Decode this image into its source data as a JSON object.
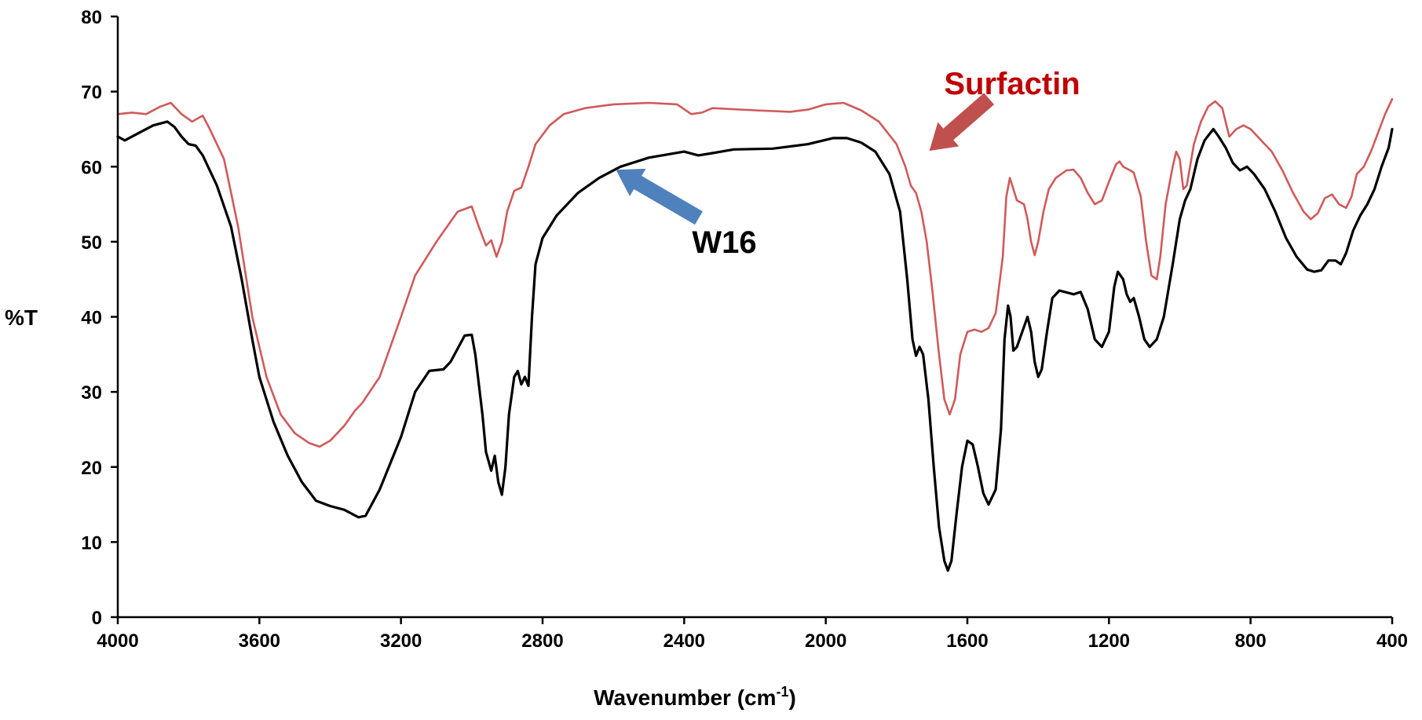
{
  "chart_data": {
    "type": "line",
    "title": "",
    "xlabel": "Wavenumber (cm",
    "xlabel_sup": "-1",
    "xlabel_close": ")",
    "ylabel": "%T",
    "xlim": [
      4000,
      400
    ],
    "ylim": [
      0,
      80
    ],
    "x_reversed": true,
    "x_ticks": [
      4000,
      3600,
      3200,
      2800,
      2400,
      2000,
      1600,
      1200,
      800,
      400
    ],
    "x_tick_labels": [
      "4000",
      "3600",
      "3200",
      "2800",
      "2400",
      "2000",
      "1600",
      "1200",
      "800",
      "400"
    ],
    "y_ticks": [
      0,
      10,
      20,
      30,
      40,
      50,
      60,
      70,
      80
    ],
    "y_tick_labels": [
      "0",
      "10",
      "20",
      "30",
      "40",
      "50",
      "60",
      "70",
      "80"
    ],
    "grid": false,
    "series": [
      {
        "name": "Surfactin",
        "color": "#d05a5a",
        "points": [
          [
            4000,
            67
          ],
          [
            3960,
            67.2
          ],
          [
            3920,
            67
          ],
          [
            3880,
            68
          ],
          [
            3850,
            68.5
          ],
          [
            3820,
            67
          ],
          [
            3790,
            66
          ],
          [
            3760,
            66.8
          ],
          [
            3740,
            65
          ],
          [
            3700,
            61
          ],
          [
            3660,
            52
          ],
          [
            3620,
            40
          ],
          [
            3580,
            32
          ],
          [
            3540,
            27
          ],
          [
            3500,
            24.5
          ],
          [
            3460,
            23.2
          ],
          [
            3430,
            22.7
          ],
          [
            3400,
            23.5
          ],
          [
            3360,
            25.5
          ],
          [
            3330,
            27.5
          ],
          [
            3310,
            28.5
          ],
          [
            3260,
            32
          ],
          [
            3200,
            40
          ],
          [
            3160,
            45.5
          ],
          [
            3100,
            50
          ],
          [
            3040,
            54
          ],
          [
            3000,
            54.7
          ],
          [
            2980,
            52
          ],
          [
            2960,
            49.5
          ],
          [
            2945,
            50.2
          ],
          [
            2930,
            48
          ],
          [
            2915,
            50
          ],
          [
            2900,
            54
          ],
          [
            2880,
            56.8
          ],
          [
            2860,
            57.2
          ],
          [
            2840,
            60
          ],
          [
            2820,
            63
          ],
          [
            2780,
            65.5
          ],
          [
            2740,
            67
          ],
          [
            2680,
            67.8
          ],
          [
            2600,
            68.3
          ],
          [
            2500,
            68.5
          ],
          [
            2420,
            68.3
          ],
          [
            2380,
            67
          ],
          [
            2350,
            67.2
          ],
          [
            2320,
            67.8
          ],
          [
            2200,
            67.5
          ],
          [
            2100,
            67.3
          ],
          [
            2050,
            67.6
          ],
          [
            2000,
            68.3
          ],
          [
            1950,
            68.5
          ],
          [
            1900,
            67.5
          ],
          [
            1850,
            66
          ],
          [
            1800,
            63
          ],
          [
            1775,
            60
          ],
          [
            1760,
            57.5
          ],
          [
            1745,
            56.5
          ],
          [
            1730,
            54
          ],
          [
            1715,
            50
          ],
          [
            1700,
            44
          ],
          [
            1680,
            35
          ],
          [
            1665,
            29
          ],
          [
            1650,
            27
          ],
          [
            1635,
            29
          ],
          [
            1620,
            35
          ],
          [
            1600,
            38
          ],
          [
            1580,
            38.3
          ],
          [
            1560,
            38
          ],
          [
            1540,
            38.5
          ],
          [
            1520,
            40.5
          ],
          [
            1500,
            48
          ],
          [
            1490,
            56
          ],
          [
            1480,
            58.5
          ],
          [
            1470,
            57
          ],
          [
            1460,
            55.5
          ],
          [
            1440,
            55
          ],
          [
            1430,
            53
          ],
          [
            1420,
            50
          ],
          [
            1410,
            48.2
          ],
          [
            1400,
            50
          ],
          [
            1385,
            54
          ],
          [
            1370,
            57
          ],
          [
            1350,
            58.5
          ],
          [
            1320,
            59.5
          ],
          [
            1300,
            59.6
          ],
          [
            1280,
            58.5
          ],
          [
            1260,
            56.5
          ],
          [
            1240,
            55
          ],
          [
            1220,
            55.5
          ],
          [
            1200,
            58
          ],
          [
            1180,
            60.3
          ],
          [
            1170,
            60.7
          ],
          [
            1160,
            60
          ],
          [
            1140,
            59.5
          ],
          [
            1130,
            59.2
          ],
          [
            1110,
            56
          ],
          [
            1095,
            50
          ],
          [
            1080,
            45.5
          ],
          [
            1065,
            45
          ],
          [
            1055,
            48
          ],
          [
            1040,
            55
          ],
          [
            1020,
            60
          ],
          [
            1010,
            62
          ],
          [
            1000,
            61
          ],
          [
            990,
            57
          ],
          [
            980,
            57.5
          ],
          [
            960,
            63
          ],
          [
            940,
            66
          ],
          [
            920,
            68
          ],
          [
            900,
            68.7
          ],
          [
            880,
            67.8
          ],
          [
            860,
            64
          ],
          [
            840,
            65
          ],
          [
            820,
            65.5
          ],
          [
            800,
            65
          ],
          [
            780,
            64
          ],
          [
            760,
            63
          ],
          [
            740,
            62
          ],
          [
            710,
            59.5
          ],
          [
            680,
            56.5
          ],
          [
            650,
            54
          ],
          [
            630,
            53
          ],
          [
            610,
            53.8
          ],
          [
            590,
            55.8
          ],
          [
            570,
            56.3
          ],
          [
            550,
            55
          ],
          [
            530,
            54.5
          ],
          [
            515,
            56
          ],
          [
            500,
            59
          ],
          [
            480,
            60
          ],
          [
            460,
            62
          ],
          [
            440,
            64.5
          ],
          [
            420,
            67
          ],
          [
            400,
            69
          ]
        ]
      },
      {
        "name": "W16",
        "color": "#000000",
        "points": [
          [
            4000,
            64
          ],
          [
            3980,
            63.5
          ],
          [
            3940,
            64.5
          ],
          [
            3900,
            65.5
          ],
          [
            3860,
            66
          ],
          [
            3840,
            65.3
          ],
          [
            3820,
            64
          ],
          [
            3800,
            63
          ],
          [
            3780,
            62.8
          ],
          [
            3760,
            61.5
          ],
          [
            3720,
            57.5
          ],
          [
            3680,
            52
          ],
          [
            3650,
            45
          ],
          [
            3620,
            37
          ],
          [
            3600,
            32
          ],
          [
            3560,
            26
          ],
          [
            3520,
            21.5
          ],
          [
            3480,
            18
          ],
          [
            3440,
            15.5
          ],
          [
            3400,
            14.8
          ],
          [
            3360,
            14.3
          ],
          [
            3320,
            13.3
          ],
          [
            3300,
            13.5
          ],
          [
            3260,
            17
          ],
          [
            3200,
            24
          ],
          [
            3160,
            30
          ],
          [
            3120,
            32.8
          ],
          [
            3080,
            33
          ],
          [
            3060,
            34
          ],
          [
            3020,
            37.5
          ],
          [
            3000,
            37.6
          ],
          [
            2990,
            35
          ],
          [
            2970,
            27
          ],
          [
            2960,
            22
          ],
          [
            2945,
            19.5
          ],
          [
            2935,
            21.5
          ],
          [
            2925,
            18
          ],
          [
            2915,
            16.3
          ],
          [
            2905,
            20
          ],
          [
            2895,
            27
          ],
          [
            2880,
            32
          ],
          [
            2870,
            32.8
          ],
          [
            2860,
            31
          ],
          [
            2850,
            32
          ],
          [
            2840,
            30.8
          ],
          [
            2830,
            40
          ],
          [
            2820,
            47
          ],
          [
            2800,
            50.5
          ],
          [
            2760,
            53.5
          ],
          [
            2700,
            56.5
          ],
          [
            2640,
            58.5
          ],
          [
            2580,
            60
          ],
          [
            2500,
            61.2
          ],
          [
            2400,
            62
          ],
          [
            2360,
            61.5
          ],
          [
            2320,
            61.8
          ],
          [
            2260,
            62.3
          ],
          [
            2150,
            62.4
          ],
          [
            2050,
            63
          ],
          [
            1980,
            63.8
          ],
          [
            1940,
            63.8
          ],
          [
            1900,
            63.2
          ],
          [
            1860,
            62
          ],
          [
            1820,
            59
          ],
          [
            1790,
            54
          ],
          [
            1770,
            45
          ],
          [
            1755,
            37
          ],
          [
            1745,
            34.8
          ],
          [
            1735,
            36
          ],
          [
            1725,
            35
          ],
          [
            1710,
            29
          ],
          [
            1695,
            20
          ],
          [
            1680,
            12
          ],
          [
            1665,
            7.5
          ],
          [
            1655,
            6.2
          ],
          [
            1645,
            7.5
          ],
          [
            1630,
            14
          ],
          [
            1615,
            20
          ],
          [
            1600,
            23.5
          ],
          [
            1585,
            23
          ],
          [
            1570,
            20
          ],
          [
            1555,
            16.5
          ],
          [
            1540,
            15
          ],
          [
            1520,
            17
          ],
          [
            1505,
            25
          ],
          [
            1495,
            37
          ],
          [
            1485,
            41.5
          ],
          [
            1478,
            40
          ],
          [
            1470,
            35.5
          ],
          [
            1460,
            36
          ],
          [
            1445,
            38
          ],
          [
            1430,
            40
          ],
          [
            1420,
            38
          ],
          [
            1410,
            34
          ],
          [
            1400,
            32
          ],
          [
            1390,
            33
          ],
          [
            1375,
            38
          ],
          [
            1360,
            42.5
          ],
          [
            1340,
            43.5
          ],
          [
            1300,
            43
          ],
          [
            1280,
            43.3
          ],
          [
            1260,
            41
          ],
          [
            1240,
            37
          ],
          [
            1220,
            36
          ],
          [
            1200,
            38
          ],
          [
            1185,
            44
          ],
          [
            1175,
            46
          ],
          [
            1160,
            45
          ],
          [
            1150,
            43
          ],
          [
            1140,
            42
          ],
          [
            1130,
            42.5
          ],
          [
            1115,
            40
          ],
          [
            1100,
            37
          ],
          [
            1085,
            36
          ],
          [
            1065,
            37
          ],
          [
            1045,
            40
          ],
          [
            1020,
            47
          ],
          [
            1000,
            53
          ],
          [
            985,
            55.5
          ],
          [
            970,
            57
          ],
          [
            950,
            61
          ],
          [
            930,
            63.5
          ],
          [
            905,
            65
          ],
          [
            890,
            64
          ],
          [
            870,
            62.5
          ],
          [
            850,
            60.5
          ],
          [
            830,
            59.5
          ],
          [
            810,
            60
          ],
          [
            790,
            59
          ],
          [
            760,
            57
          ],
          [
            730,
            54
          ],
          [
            700,
            50.5
          ],
          [
            670,
            48
          ],
          [
            640,
            46.3
          ],
          [
            620,
            46
          ],
          [
            600,
            46.2
          ],
          [
            580,
            47.5
          ],
          [
            560,
            47.5
          ],
          [
            545,
            47
          ],
          [
            530,
            48.5
          ],
          [
            510,
            51.5
          ],
          [
            490,
            53.5
          ],
          [
            470,
            55
          ],
          [
            450,
            57
          ],
          [
            430,
            60
          ],
          [
            410,
            62.5
          ],
          [
            400,
            65
          ]
        ]
      }
    ],
    "annotations": [
      {
        "text": "Surfactin",
        "color": "#c00000",
        "arrow_color": "#c0504d",
        "arrow_from": [
          1540,
          69
        ],
        "arrow_to": [
          1705,
          62.2
        ]
      },
      {
        "text": "W16",
        "color": "#000000",
        "arrow_color": "#4f81bd",
        "arrow_from": [
          2360,
          53.2
        ],
        "arrow_to": [
          2590,
          59.5
        ]
      }
    ]
  }
}
